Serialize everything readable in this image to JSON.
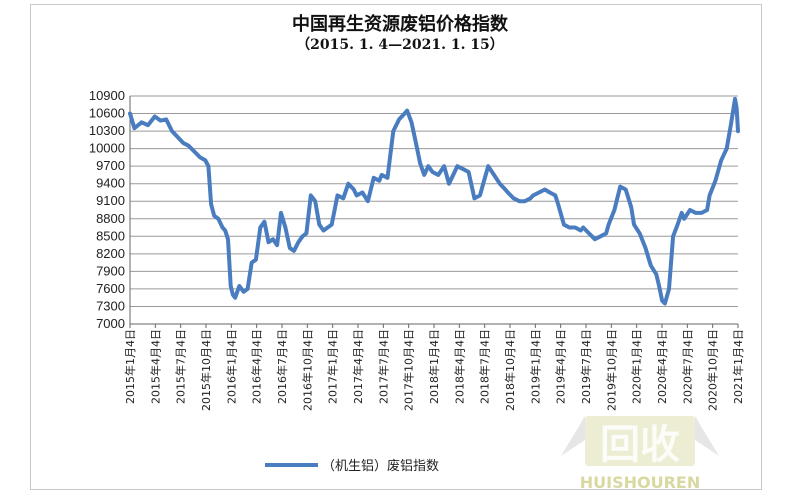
{
  "chart_data": {
    "type": "line",
    "title": "中国再生资源废铝价格指数",
    "subtitle": "（2015. 1. 4—2021. 1. 15）",
    "xlabel": "",
    "ylabel": "",
    "ylim": [
      7000,
      10900
    ],
    "yticks": [
      "10900",
      "10600",
      "10300",
      "10000",
      "9700",
      "9400",
      "9100",
      "8800",
      "8500",
      "8200",
      "7900",
      "7600",
      "7300",
      "7000"
    ],
    "ytick_values": [
      10900,
      10600,
      10300,
      10000,
      9700,
      9400,
      9100,
      8800,
      8500,
      8200,
      7900,
      7600,
      7300,
      7000
    ],
    "xticks": [
      "2015年1月4日",
      "2015年4月4日",
      "2015年7月4日",
      "2015年10月4日",
      "2016年1月4日",
      "2016年4月4日",
      "2016年7月4日",
      "2016年10月4日",
      "2017年1月4日",
      "2017年4月4日",
      "2017年7月4日",
      "2017年10月4日",
      "2018年1月4日",
      "2018年4月4日",
      "2018年7月4日",
      "2018年10月4日",
      "2019年1月4日",
      "2019年4月4日",
      "2019年7月4日",
      "2019年10月4日",
      "2020年1月4日",
      "2020年4月4日",
      "2020年7月4日",
      "2020年10月4日",
      "2021年1月4日"
    ],
    "grid": true,
    "legend": "bottom",
    "line_color": "#4a7cc0",
    "series": [
      {
        "name": "（机生铝）废铝指数",
        "x": [
          "2015-01-04",
          "2015-01-20",
          "2015-02-15",
          "2015-03-10",
          "2015-04-04",
          "2015-04-25",
          "2015-05-15",
          "2015-06-05",
          "2015-06-25",
          "2015-07-15",
          "2015-08-04",
          "2015-08-25",
          "2015-09-15",
          "2015-10-04",
          "2015-10-15",
          "2015-10-25",
          "2015-11-05",
          "2015-11-20",
          "2015-12-05",
          "2015-12-15",
          "2015-12-25",
          "2016-01-04",
          "2016-01-12",
          "2016-01-20",
          "2016-02-04",
          "2016-02-20",
          "2016-03-05",
          "2016-03-20",
          "2016-04-04",
          "2016-04-20",
          "2016-05-05",
          "2016-05-20",
          "2016-06-05",
          "2016-06-20",
          "2016-07-04",
          "2016-07-20",
          "2016-08-05",
          "2016-08-20",
          "2016-09-05",
          "2016-09-20",
          "2016-10-04",
          "2016-10-20",
          "2016-11-05",
          "2016-11-20",
          "2016-12-05",
          "2016-12-20",
          "2017-01-04",
          "2017-01-25",
          "2017-02-15",
          "2017-03-05",
          "2017-03-25",
          "2017-04-04",
          "2017-04-25",
          "2017-05-15",
          "2017-06-05",
          "2017-06-25",
          "2017-07-04",
          "2017-07-25",
          "2017-08-15",
          "2017-09-05",
          "2017-09-25",
          "2017-10-04",
          "2017-10-20",
          "2017-11-05",
          "2017-11-20",
          "2017-12-05",
          "2017-12-20",
          "2018-01-04",
          "2018-01-25",
          "2018-02-15",
          "2018-03-05",
          "2018-03-25",
          "2018-04-04",
          "2018-04-25",
          "2018-05-15",
          "2018-06-05",
          "2018-06-25",
          "2018-07-04",
          "2018-07-25",
          "2018-08-15",
          "2018-09-05",
          "2018-09-25",
          "2018-10-04",
          "2018-10-25",
          "2018-11-15",
          "2018-12-05",
          "2018-12-25",
          "2019-01-04",
          "2019-01-25",
          "2019-02-15",
          "2019-03-05",
          "2019-03-25",
          "2019-04-04",
          "2019-04-25",
          "2019-05-15",
          "2019-06-05",
          "2019-06-25",
          "2019-07-04",
          "2019-07-25",
          "2019-08-15",
          "2019-09-05",
          "2019-09-25",
          "2019-10-04",
          "2019-10-25",
          "2019-11-15",
          "2019-12-05",
          "2019-12-25",
          "2020-01-04",
          "2020-01-25",
          "2020-02-15",
          "2020-03-05",
          "2020-03-25",
          "2020-04-04",
          "2020-04-15",
          "2020-04-25",
          "2020-05-10",
          "2020-05-25",
          "2020-06-10",
          "2020-06-25",
          "2020-07-04",
          "2020-07-25",
          "2020-08-15",
          "2020-09-05",
          "2020-09-25",
          "2020-10-04",
          "2020-10-25",
          "2020-11-15",
          "2020-12-05",
          "2020-12-20",
          "2021-01-04",
          "2021-01-10",
          "2021-01-15"
        ],
        "values": [
          10600,
          10350,
          10450,
          10400,
          10550,
          10480,
          10500,
          10300,
          10200,
          10100,
          10050,
          9950,
          9850,
          9800,
          9700,
          9050,
          8850,
          8800,
          8650,
          8600,
          8450,
          7650,
          7500,
          7450,
          7650,
          7550,
          7600,
          8050,
          8100,
          8650,
          8750,
          8400,
          8450,
          8350,
          8900,
          8650,
          8300,
          8250,
          8400,
          8500,
          8550,
          9200,
          9100,
          8700,
          8600,
          8650,
          8700,
          9200,
          9150,
          9400,
          9300,
          9200,
          9250,
          9100,
          9500,
          9450,
          9550,
          9500,
          10300,
          10500,
          10600,
          10650,
          10450,
          10100,
          9750,
          9550,
          9700,
          9600,
          9550,
          9700,
          9400,
          9600,
          9700,
          9650,
          9600,
          9150,
          9200,
          9350,
          9700,
          9550,
          9400,
          9300,
          9250,
          9150,
          9100,
          9100,
          9150,
          9200,
          9250,
          9300,
          9250,
          9200,
          9050,
          8700,
          8650,
          8650,
          8600,
          8650,
          8550,
          8450,
          8500,
          8550,
          8700,
          8950,
          9350,
          9300,
          9000,
          8700,
          8550,
          8300,
          8000,
          7850,
          7650,
          7400,
          7350,
          7600,
          8500,
          8700,
          8900,
          8800,
          8950,
          8900,
          8900,
          8950,
          9200,
          9450,
          9800,
          10000,
          10400,
          10850,
          10700,
          10300
        ]
      }
    ]
  },
  "watermark": {
    "main": "回收",
    "sub": "HUISHOUREN"
  }
}
